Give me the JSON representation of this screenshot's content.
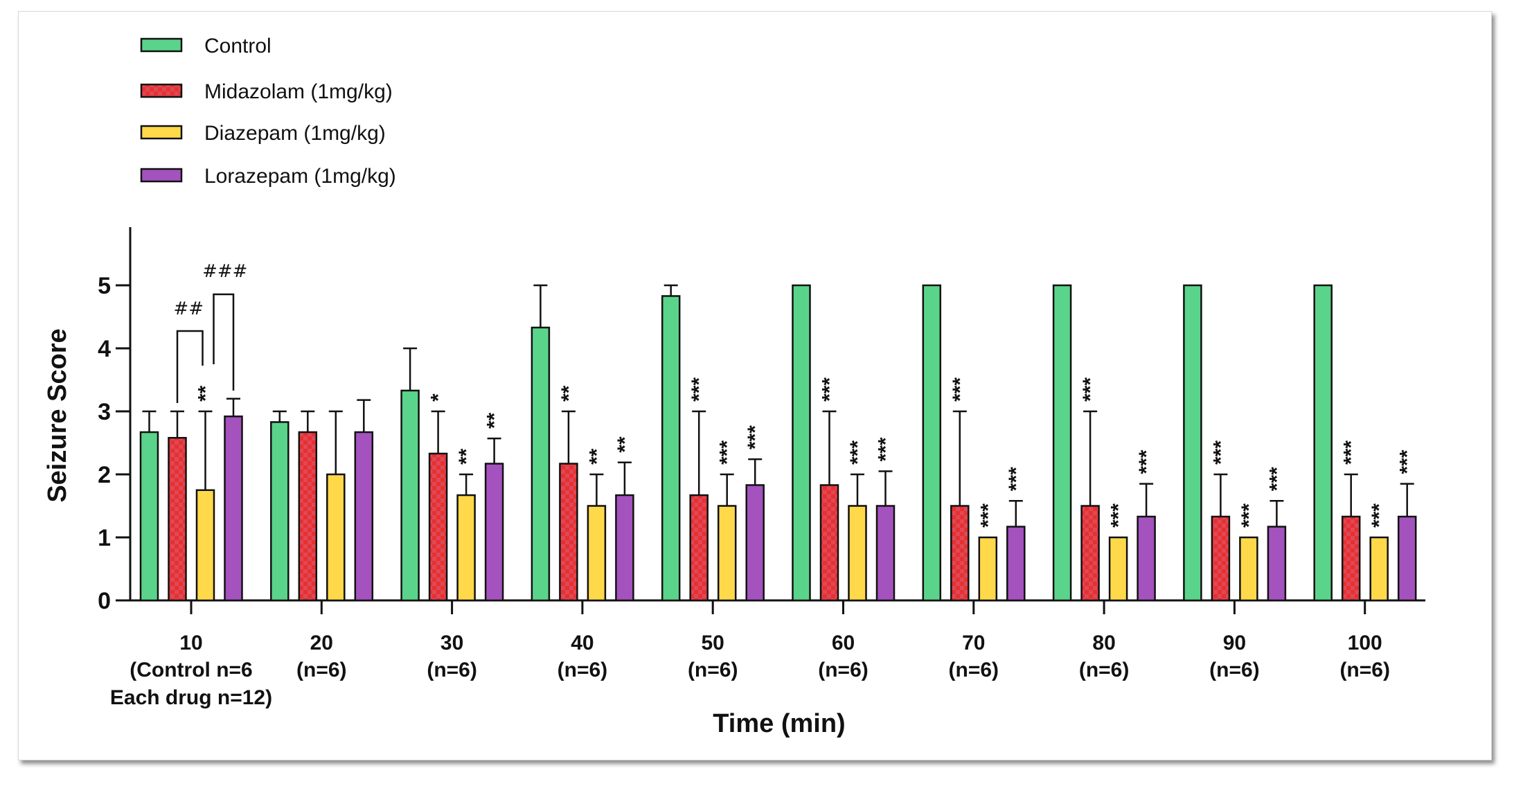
{
  "chart_data": {
    "type": "bar",
    "title": "",
    "xlabel": "Time (min)",
    "ylabel": "Seizure Score",
    "ylim": [
      0,
      5.9
    ],
    "yticks": [
      "0",
      "1",
      "2",
      "3",
      "4",
      "5"
    ],
    "grid": false,
    "legend_position": "top-left",
    "categories": [
      "10",
      "20",
      "30",
      "40",
      "50",
      "60",
      "70",
      "80",
      "90",
      "100"
    ],
    "category_sublabels": [
      [
        "(Control n=6",
        "Each drug n=12)"
      ],
      [
        "(n=6)"
      ],
      [
        "(n=6)"
      ],
      [
        "(n=6)"
      ],
      [
        "(n=6)"
      ],
      [
        "(n=6)"
      ],
      [
        "(n=6)"
      ],
      [
        "(n=6)"
      ],
      [
        "(n=6)"
      ],
      [
        "(n=6)"
      ]
    ],
    "series": [
      {
        "name": "Control",
        "color": "#5AD48A",
        "pattern": "solid",
        "values": [
          2.67,
          2.83,
          3.33,
          4.33,
          4.83,
          5,
          5,
          5,
          5,
          5
        ],
        "error_upper": [
          3,
          3,
          4,
          5,
          5,
          null,
          null,
          null,
          null,
          null
        ],
        "significance": [
          "",
          "",
          "",
          "",
          "",
          "",
          "",
          "",
          "",
          ""
        ]
      },
      {
        "name": "Midazolam (1mg/kg)",
        "color": "#E8302E",
        "color_alt": "#DE4858",
        "pattern": "checker",
        "values": [
          2.58,
          2.67,
          2.33,
          2.17,
          1.67,
          1.83,
          1.5,
          1.5,
          1.33,
          1.33
        ],
        "error_upper": [
          3,
          3,
          3,
          3,
          3,
          3,
          3,
          3,
          2,
          2
        ],
        "significance": [
          "",
          "",
          "*",
          "**",
          "***",
          "***",
          "***",
          "***",
          "***",
          "***"
        ]
      },
      {
        "name": "Diazepam (1mg/kg)",
        "color": "#FFD94A",
        "pattern": "solid",
        "values": [
          1.75,
          2,
          1.67,
          1.5,
          1.5,
          1.5,
          1,
          1,
          1,
          1
        ],
        "error_upper": [
          3,
          3,
          2,
          2,
          2,
          2,
          null,
          null,
          null,
          null
        ],
        "significance": [
          "**",
          "",
          "**",
          "**",
          "***",
          "***",
          "***",
          "***",
          "***",
          "***"
        ]
      },
      {
        "name": "Lorazepam (1mg/kg)",
        "color": "#A452BE",
        "pattern": "solid",
        "values": [
          2.92,
          2.67,
          2.17,
          1.67,
          1.83,
          1.5,
          1.17,
          1.33,
          1.17,
          1.33
        ],
        "error_upper": [
          3.2,
          3.18,
          2.57,
          2.19,
          2.24,
          2.05,
          1.58,
          1.85,
          1.58,
          1.85
        ],
        "significance": [
          "",
          "",
          "**",
          "**",
          "***",
          "***",
          "***",
          "***",
          "***",
          "***"
        ]
      }
    ],
    "annotations": [
      {
        "text": "##",
        "category": "10",
        "between": [
          "Midazolam (1mg/kg)",
          "Diazepam (1mg/kg)"
        ]
      },
      {
        "text": "###",
        "category": "10",
        "between": [
          "Diazepam (1mg/kg)",
          "Lorazepam (1mg/kg)"
        ]
      }
    ]
  }
}
